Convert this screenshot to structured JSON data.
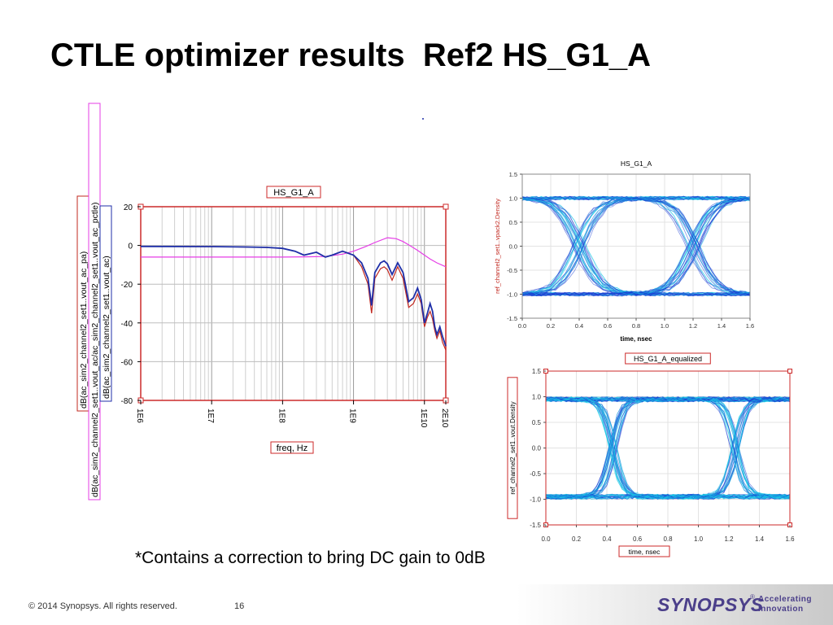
{
  "slide": {
    "title": "CTLE optimizer results  Ref2 HS_G1_A",
    "footnote": "*Contains a correction to bring DC gain to 0dB",
    "footer": {
      "copyright": "© 2014 Synopsys. All rights reserved.",
      "page_number": "16",
      "logo_text": "SYNOPSYS",
      "logo_tagline_1": "Accelerating",
      "logo_tagline_2": "Innovation"
    }
  },
  "colors": {
    "series_red": "#c2281f",
    "series_blue": "#1f2fa8",
    "series_magenta": "#e53de6",
    "eye_cyan": "#17c7e6",
    "eye_blue": "#1c3fd4",
    "frame_red": "#cc2a2a"
  },
  "chart_data": [
    {
      "type": "line",
      "title": "HS_G1_A",
      "xlabel": "freq, Hz",
      "x_scale": "log",
      "xlim": [
        1000000,
        20000000000
      ],
      "x_ticks": [
        "1E6",
        "1E7",
        "1E8",
        "1E9",
        "1E10",
        "2E10"
      ],
      "ylim": [
        -80,
        20
      ],
      "y_ticks": [
        "20",
        "0",
        "-20",
        "-40",
        "-60",
        "-80"
      ],
      "grid": true,
      "legend_placement": "left, rotated",
      "series": [
        {
          "name": "dB(ac_sim2_channel2_set1..vout_ac_pa)",
          "color_key": "series_red",
          "x": [
            1000000,
            10000000,
            30000000,
            60000000,
            100000000,
            150000000,
            200000000,
            300000000,
            400000000,
            500000000,
            700000000,
            1000000000,
            1300000000,
            1600000000,
            1800000000,
            2000000000,
            2400000000,
            2700000000,
            3000000000,
            3500000000,
            4200000000,
            5000000000,
            6000000000,
            7000000000,
            8000000000,
            9000000000,
            10000000000,
            11000000000,
            12000000000,
            13000000000,
            14000000000,
            15000000000,
            16500000000,
            18000000000,
            20000000000
          ],
          "y": [
            -0.5,
            -0.6,
            -0.8,
            -1.0,
            -1.5,
            -3,
            -5,
            -3.5,
            -6,
            -5,
            -3,
            -5,
            -11,
            -20,
            -35,
            -17,
            -12,
            -11,
            -12.5,
            -18,
            -11,
            -17,
            -32,
            -30,
            -25,
            -30,
            -42,
            -37,
            -34,
            -38,
            -44,
            -48,
            -44,
            -50,
            -54
          ]
        },
        {
          "name": "dB(ac_sim2_channel2_set1..vout_ac/ac_sim2_channel2_set1..vout_ac_pctle)",
          "color_key": "series_magenta",
          "x": [
            1000000,
            100000000,
            200000000,
            400000000,
            700000000,
            1000000000,
            1500000000,
            2000000000,
            3000000000,
            4000000000,
            5000000000,
            6000000000,
            8000000000,
            10000000000,
            12000000000,
            15000000000,
            20000000000
          ],
          "y": [
            -6,
            -6,
            -5.9,
            -5.7,
            -4.5,
            -3,
            -0.5,
            1.5,
            4,
            3.5,
            2,
            0.3,
            -2.5,
            -5,
            -7,
            -9,
            -11
          ]
        },
        {
          "name": "dB(ac_sim2_channel2_set1..vout_ac)",
          "color_key": "series_blue",
          "x": [
            1000000,
            10000000,
            30000000,
            60000000,
            100000000,
            150000000,
            200000000,
            300000000,
            400000000,
            500000000,
            700000000,
            1000000000,
            1300000000,
            1600000000,
            1800000000,
            2000000000,
            2400000000,
            2700000000,
            3000000000,
            3500000000,
            4200000000,
            5000000000,
            6000000000,
            7000000000,
            8000000000,
            9000000000,
            10000000000,
            11000000000,
            12000000000,
            13000000000,
            14000000000,
            15000000000,
            16500000000,
            18000000000,
            20000000000
          ],
          "y": [
            -0.5,
            -0.6,
            -0.8,
            -1.0,
            -1.5,
            -3,
            -5,
            -3.5,
            -6,
            -5,
            -3,
            -5,
            -9,
            -17,
            -31,
            -14,
            -9,
            -8,
            -9.5,
            -15,
            -9,
            -14,
            -29,
            -27,
            -22,
            -28,
            -40,
            -35,
            -30,
            -34,
            -42,
            -46,
            -42,
            -47,
            -52
          ]
        }
      ]
    },
    {
      "type": "scatter",
      "subtype": "eye-diagram density",
      "title": "HS_G1_A",
      "xlabel": "time, nsec",
      "ylabel": "ref_channel2_set1..vpack2.Density",
      "xlim": [
        0.0,
        1.6
      ],
      "ylim": [
        -1.5,
        1.5
      ],
      "x_ticks": [
        "0.0",
        "0.2",
        "0.4",
        "0.6",
        "0.8",
        "1.0",
        "1.2",
        "1.4",
        "1.6"
      ],
      "y_ticks": [
        "1.5",
        "1.0",
        "0.5",
        "0.0",
        "-0.5",
        "-1.0",
        "-1.5"
      ],
      "rails": [
        1.0,
        -1.0
      ],
      "crossings_ns": [
        0.4,
        1.2
      ],
      "open_eye_height": 1.0
    },
    {
      "type": "scatter",
      "subtype": "eye-diagram density",
      "title": "HS_G1_A_equalized",
      "xlabel": "time, nsec",
      "ylabel": "ref_channel2_set1..vout.Density",
      "xlim": [
        0.0,
        1.6
      ],
      "ylim": [
        -1.5,
        1.5
      ],
      "x_ticks": [
        "0.0",
        "0.2",
        "0.4",
        "0.6",
        "0.8",
        "1.0",
        "1.2",
        "1.4",
        "1.6"
      ],
      "y_ticks": [
        "1.5",
        "1.0",
        "0.5",
        "0.0",
        "-0.5",
        "-1.0",
        "-1.5"
      ],
      "rails": [
        0.95,
        -0.95
      ],
      "crossings_ns": [
        0.44,
        1.24
      ],
      "open_eye_height": 1.7
    }
  ]
}
